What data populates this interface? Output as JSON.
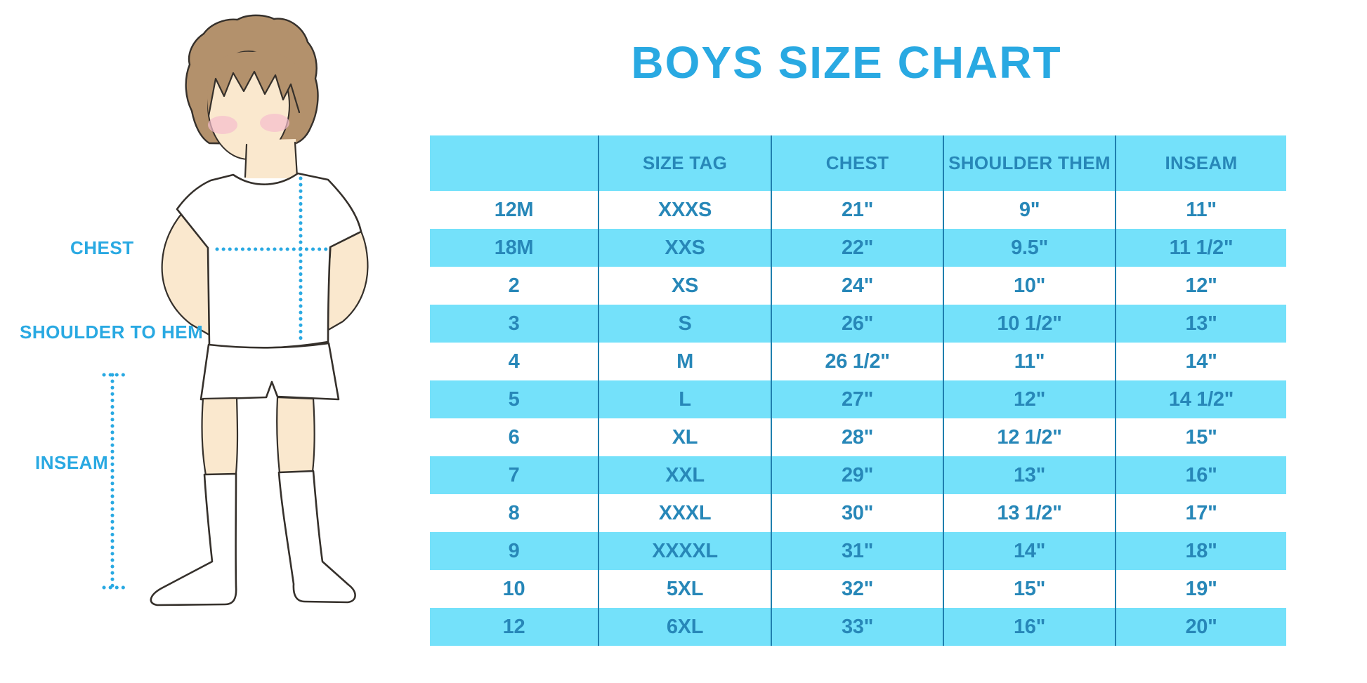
{
  "title": "BOYS SIZE CHART",
  "diagram": {
    "labels": {
      "chest": "CHEST",
      "shoulder_to_hem": "SHOULDER TO HEM",
      "inseam": "INSEAM"
    }
  },
  "chart_data": {
    "type": "table",
    "title": "BOYS SIZE CHART",
    "columns": [
      "",
      "SIZE TAG",
      "CHEST",
      "SHOULDER THEM",
      "INSEAM"
    ],
    "rows": [
      [
        "12M",
        "XXXS",
        "21\"",
        "9\"",
        "11\""
      ],
      [
        "18M",
        "XXS",
        "22\"",
        "9.5\"",
        "11 1/2\""
      ],
      [
        "2",
        "XS",
        "24\"",
        "10\"",
        "12\""
      ],
      [
        "3",
        "S",
        "26\"",
        "10 1/2\"",
        "13\""
      ],
      [
        "4",
        "M",
        "26 1/2\"",
        "11\"",
        "14\""
      ],
      [
        "5",
        "L",
        "27\"",
        "12\"",
        "14 1/2\""
      ],
      [
        "6",
        "XL",
        "28\"",
        "12 1/2\"",
        "15\""
      ],
      [
        "7",
        "XXL",
        "29\"",
        "13\"",
        "16\""
      ],
      [
        "8",
        "XXXL",
        "30\"",
        "13 1/2\"",
        "17\""
      ],
      [
        "9",
        "XXXXL",
        "31\"",
        "14\"",
        "18\""
      ],
      [
        "10",
        "5XL",
        "32\"",
        "15\"",
        "19\""
      ],
      [
        "12",
        "6XL",
        "33\"",
        "16\"",
        "20\""
      ]
    ],
    "row_stripe_pattern": "alternating white and light blue, starting white",
    "grid": "vertical column separator lines only, no outer border",
    "legend_position": "none"
  },
  "colors": {
    "title_blue": "#29A9E2",
    "row_blue": "#74E1FA",
    "table_text": "#2787B8",
    "grid_line": "#1F7FAE",
    "hair": "#B3916C",
    "skin": "#FAE8CE",
    "blush": "#F5BECD",
    "outline": "#35302B"
  }
}
